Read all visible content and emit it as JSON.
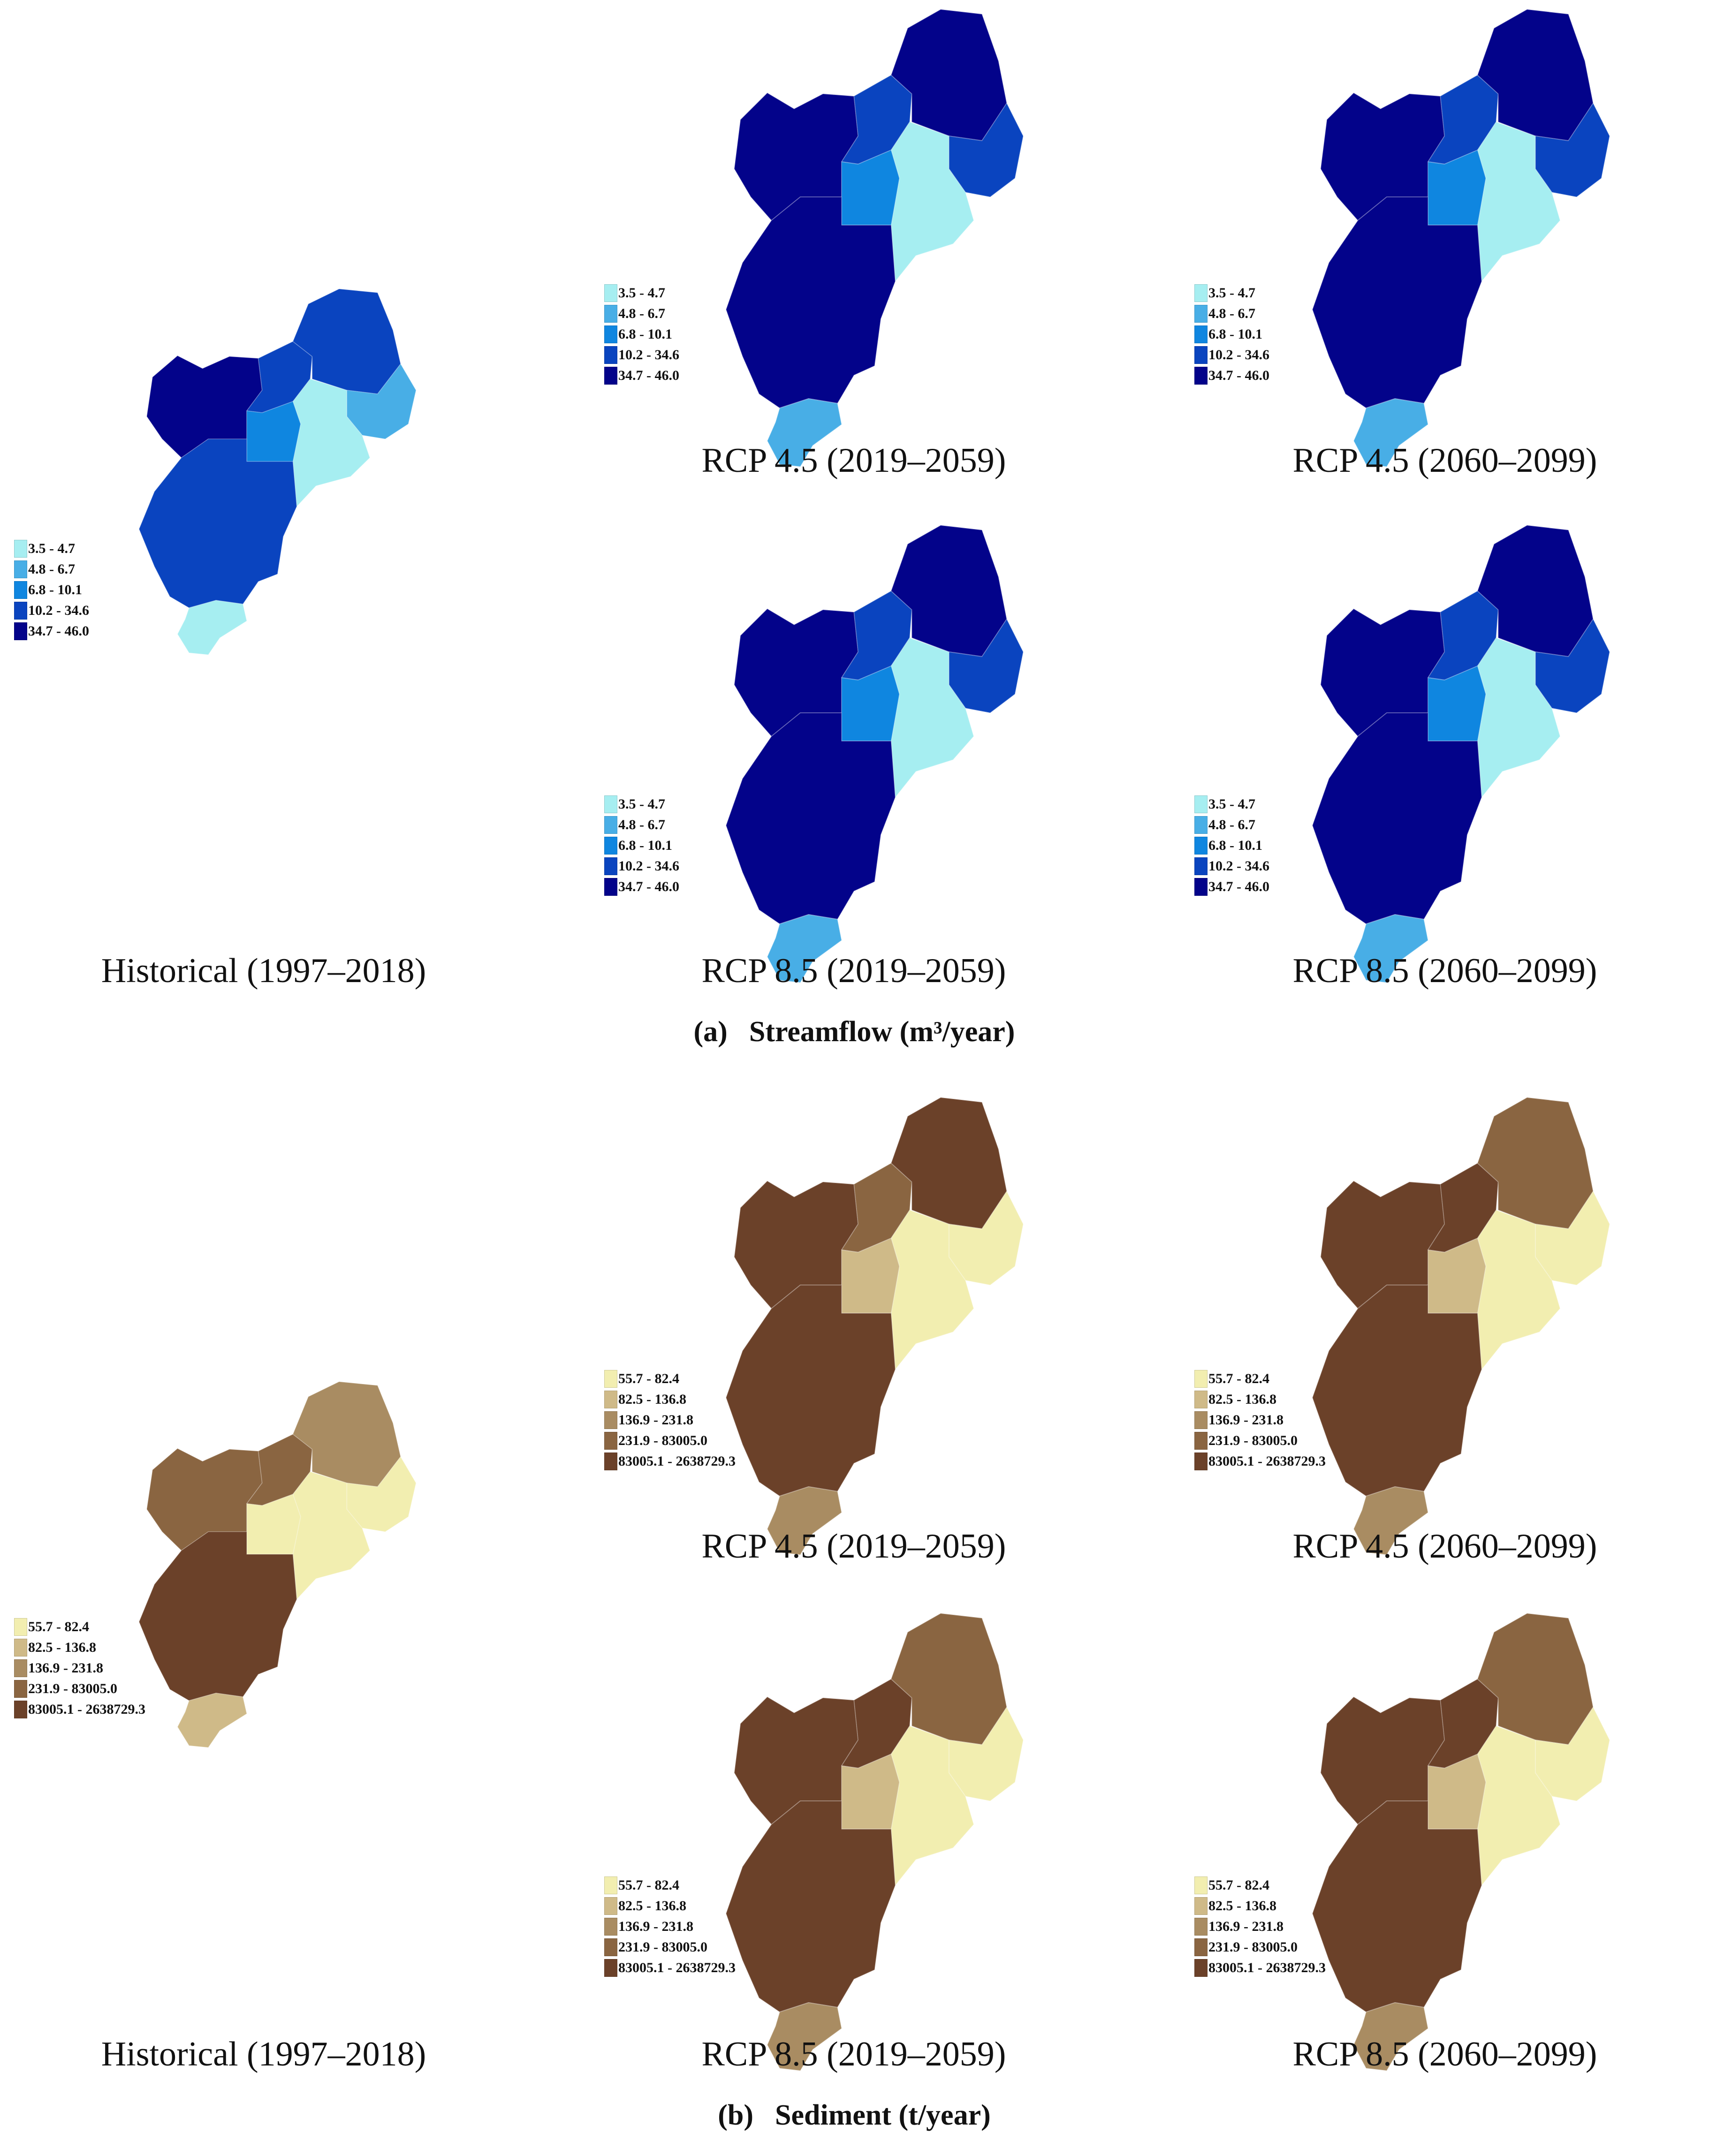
{
  "streamflow": {
    "section_tag": "(a)",
    "section_title": "Streamflow (m³/year)",
    "legend": [
      {
        "label": "3.5 - 4.7",
        "color": "#a6eef1"
      },
      {
        "label": "4.8 - 6.7",
        "color": "#48aee6"
      },
      {
        "label": "6.8 - 10.1",
        "color": "#0f86e0"
      },
      {
        "label": "10.2 - 34.6",
        "color": "#0a44bf"
      },
      {
        "label": "34.7 - 46.0",
        "color": "#03038a"
      }
    ],
    "maps": [
      {
        "label": "Historical (1997–2018)",
        "fills": [
          4,
          3,
          3,
          1,
          0,
          2,
          3,
          0
        ]
      },
      {
        "label": "RCP 4.5 (2019–2059)",
        "fills": [
          4,
          3,
          4,
          3,
          0,
          2,
          4,
          1
        ]
      },
      {
        "label": "RCP 4.5 (2060–2099)",
        "fills": [
          4,
          3,
          4,
          3,
          0,
          2,
          4,
          1
        ]
      },
      {
        "label": "RCP 8.5 (2019–2059)",
        "fills": [
          4,
          3,
          4,
          3,
          0,
          2,
          4,
          1
        ]
      },
      {
        "label": "RCP 8.5 (2060–2099)",
        "fills": [
          4,
          3,
          4,
          3,
          0,
          2,
          4,
          1
        ]
      }
    ]
  },
  "sediment": {
    "section_tag": "(b)",
    "section_title": "Sediment (t/year)",
    "legend": [
      {
        "label": "55.7 - 82.4",
        "color": "#f2eeb0"
      },
      {
        "label": "82.5 - 136.8",
        "color": "#cfba88"
      },
      {
        "label": "136.9 - 231.8",
        "color": "#a98c62"
      },
      {
        "label": "231.9 - 83005.0",
        "color": "#8a6541"
      },
      {
        "label": "83005.1 - 2638729.3",
        "color": "#6b4129"
      }
    ],
    "maps": [
      {
        "label": "Historical (1997–2018)",
        "fills": [
          3,
          3,
          2,
          0,
          0,
          0,
          4,
          1
        ]
      },
      {
        "label": "RCP 4.5 (2019–2059)",
        "fills": [
          4,
          3,
          4,
          0,
          0,
          1,
          4,
          2
        ]
      },
      {
        "label": "RCP 4.5 (2060–2099)",
        "fills": [
          4,
          4,
          3,
          0,
          0,
          1,
          4,
          2
        ]
      },
      {
        "label": "RCP 8.5 (2019–2059)",
        "fills": [
          4,
          4,
          3,
          0,
          0,
          1,
          4,
          2
        ]
      },
      {
        "label": "RCP 8.5 (2060–2099)",
        "fills": [
          4,
          4,
          3,
          0,
          0,
          1,
          4,
          2
        ]
      }
    ]
  }
}
